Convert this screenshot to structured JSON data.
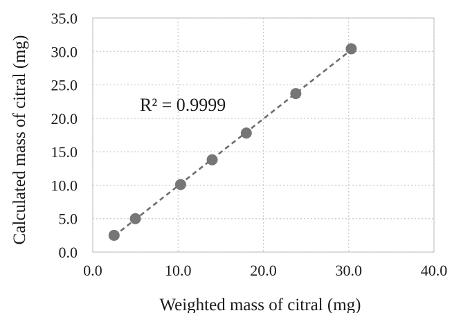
{
  "chart_data": {
    "type": "scatter",
    "title": "",
    "xlabel": "Weighted mass of citral (mg)",
    "ylabel": "Calculated mass of citral (mg)",
    "xlim": [
      0,
      40
    ],
    "ylim": [
      0,
      35
    ],
    "x_ticks": [
      "0.0",
      "10.0",
      "20.0",
      "30.0",
      "40.0"
    ],
    "y_ticks": [
      "0.0",
      "5.0",
      "10.0",
      "15.0",
      "20.0",
      "25.0",
      "30.0",
      "35.0"
    ],
    "grid": true,
    "series": [
      {
        "points": [
          {
            "x": 2.5,
            "y": 2.5
          },
          {
            "x": 5.0,
            "y": 5.0
          },
          {
            "x": 10.3,
            "y": 10.1
          },
          {
            "x": 14.0,
            "y": 13.8
          },
          {
            "x": 18.0,
            "y": 17.8
          },
          {
            "x": 23.8,
            "y": 23.7
          },
          {
            "x": 30.3,
            "y": 30.4
          }
        ],
        "color": "#767676"
      }
    ],
    "trendline": {
      "type": "linear",
      "color": "#6e6e6e",
      "style": "dashed"
    },
    "annotation": {
      "text": "R² = 0.9999"
    }
  }
}
